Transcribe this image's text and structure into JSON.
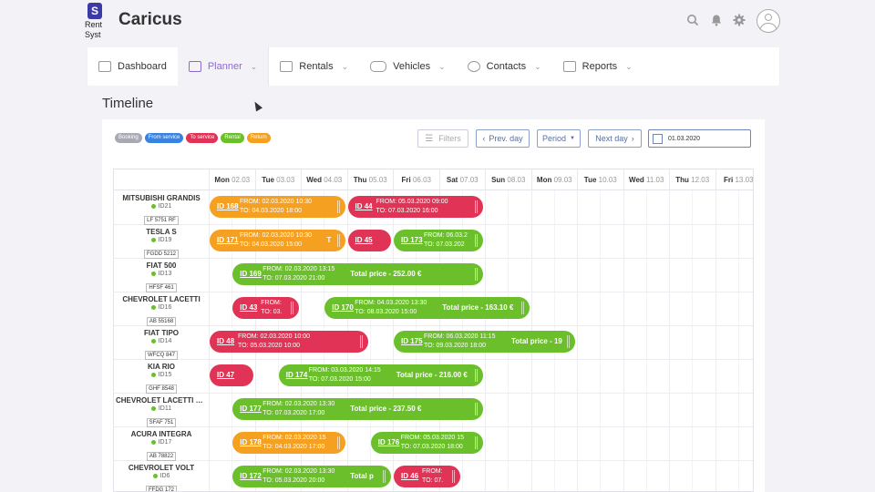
{
  "header": {
    "logo_line1": "Rent",
    "logo_line2": "Syst",
    "logo_mark": "S",
    "brand": "Caricus",
    "icons": [
      "search-icon",
      "bell-icon",
      "gear-icon",
      "user-avatar-icon"
    ]
  },
  "nav": {
    "items": [
      {
        "label": "Dashboard",
        "icon": "dashboard-icon",
        "dropdown": false,
        "active": false
      },
      {
        "label": "Planner",
        "icon": "planner-icon",
        "dropdown": true,
        "active": true
      },
      {
        "label": "Rentals",
        "icon": "rentals-icon",
        "dropdown": true,
        "active": false
      },
      {
        "label": "Vehicles",
        "icon": "car-icon",
        "dropdown": true,
        "active": false
      },
      {
        "label": "Contacts",
        "icon": "contacts-icon",
        "dropdown": true,
        "active": false
      },
      {
        "label": "Reports",
        "icon": "reports-icon",
        "dropdown": true,
        "active": false
      }
    ]
  },
  "page": {
    "title": "Timeline"
  },
  "legend": [
    {
      "label": "Booking",
      "color": "#a9a9b5"
    },
    {
      "label": "From service",
      "color": "#3a82e0"
    },
    {
      "label": "To service",
      "color": "#e03355"
    },
    {
      "label": "Rental",
      "color": "#6abf2a"
    },
    {
      "label": "Return",
      "color": "#f5a020"
    }
  ],
  "toolbar": {
    "filters": "Filters",
    "prev_day": "Prev. day",
    "period": "Period",
    "next_day": "Next day",
    "date_value": "01.03.2020"
  },
  "days": [
    {
      "dow": "Mon",
      "date": "02.03",
      "bold": true
    },
    {
      "dow": "Tue",
      "date": "03.03",
      "bold": true
    },
    {
      "dow": "Wed",
      "date": "04.03",
      "bold": true
    },
    {
      "dow": "Thu",
      "date": "05.03",
      "bold": true
    },
    {
      "dow": "Fri",
      "date": "06.03",
      "bold": true
    },
    {
      "dow": "Sat",
      "date": "07.03",
      "bold": true
    },
    {
      "dow": "Sun",
      "date": "08.03",
      "bold": true
    },
    {
      "dow": "Mon",
      "date": "09.03",
      "bold": true
    },
    {
      "dow": "Tue",
      "date": "10.03",
      "bold": true
    },
    {
      "dow": "Wed",
      "date": "11.03",
      "bold": true
    },
    {
      "dow": "Thu",
      "date": "12.03",
      "bold": true
    },
    {
      "dow": "Fri",
      "date": "13.03",
      "bold": true
    }
  ],
  "vehicles": [
    {
      "name": "MITSUBISHI GRANDIS",
      "id": "ID21",
      "plate": "LF 5751 RF"
    },
    {
      "name": "TESLA S",
      "id": "ID19",
      "plate": "FGDD 5212"
    },
    {
      "name": "FIAT 500",
      "id": "ID13",
      "plate": "HFSF 461"
    },
    {
      "name": "CHEVROLET LACETTI",
      "id": "ID16",
      "plate": "AB 55168"
    },
    {
      "name": "FIAT TIPO",
      "id": "ID14",
      "plate": "WFCQ 847"
    },
    {
      "name": "KIA RIO",
      "id": "ID15",
      "plate": "GHF 8548"
    },
    {
      "name": "CHEVROLET LACETTI W...",
      "id": "ID11",
      "plate": "SFAF 751"
    },
    {
      "name": "ACURA INTEGRA",
      "id": "ID17",
      "plate": "AB 78822"
    },
    {
      "name": "CHEVROLET VOLT",
      "id": "ID6",
      "plate": "FFDG 172"
    }
  ],
  "bookings": [
    {
      "row": 0,
      "start_day": 0,
      "span_days": 3,
      "color": "#f5a020",
      "id": "ID 168",
      "from": "FROM: 02.03.2020 10:30",
      "to": "TO: 04.03.2020 18:00",
      "total": ""
    },
    {
      "row": 0,
      "start_day": 3,
      "span_days": 3,
      "color": "#e03355",
      "id": "ID 44",
      "from": "FROM: 05.03.2020 09:00",
      "to": "TO: 07.03.2020 16:00",
      "total": ""
    },
    {
      "row": 1,
      "start_day": 0,
      "span_days": 3,
      "color": "#f5a020",
      "id": "ID 171",
      "from": "FROM: 02.03.2020 10:30",
      "to": "TO: 04.03.2020 15:00",
      "total": "T"
    },
    {
      "row": 1,
      "start_day": 3,
      "span_days": 1,
      "color": "#e03355",
      "id": "ID 45",
      "from": "",
      "to": "",
      "total": ""
    },
    {
      "row": 1,
      "start_day": 4,
      "span_days": 2,
      "color": "#6abf2a",
      "id": "ID 173",
      "from": "FROM: 06.03.2",
      "to": "TO: 07.03.202",
      "total": ""
    },
    {
      "row": 2,
      "start_day": 0.5,
      "span_days": 5.5,
      "color": "#6abf2a",
      "id": "ID 169",
      "from": "FROM: 02.03.2020 13:15",
      "to": "TO: 07.03.2020 21:00",
      "total": "Total price - 252.00 €"
    },
    {
      "row": 3,
      "start_day": 0.5,
      "span_days": 1.5,
      "color": "#e03355",
      "id": "ID 43",
      "from": "FROM:",
      "to": "TO: 03.",
      "total": ""
    },
    {
      "row": 3,
      "start_day": 2.5,
      "span_days": 4.5,
      "color": "#6abf2a",
      "id": "ID 170",
      "from": "FROM: 04.03.2020 13:30",
      "to": "TO: 08.03.2020 15:00",
      "total": "Total price - 163.10 €"
    },
    {
      "row": 4,
      "start_day": 0,
      "span_days": 3.5,
      "color": "#e03355",
      "id": "ID 48",
      "from": "FROM: 02.03.2020 10:00",
      "to": "TO: 05.03.2020 10:00",
      "total": ""
    },
    {
      "row": 4,
      "start_day": 4,
      "span_days": 4,
      "color": "#6abf2a",
      "id": "ID 175",
      "from": "FROM: 06.03.2020 11:15",
      "to": "TO: 09.03.2020 18:00",
      "total": "Total price - 19"
    },
    {
      "row": 5,
      "start_day": 0,
      "span_days": 1,
      "color": "#e03355",
      "id": "ID 47",
      "from": "",
      "to": "",
      "total": ""
    },
    {
      "row": 5,
      "start_day": 1.5,
      "span_days": 4.5,
      "color": "#6abf2a",
      "id": "ID 174",
      "from": "FROM: 03.03.2020 14:15",
      "to": "TO: 07.03.2020 15:00",
      "total": "Total price - 216.00 €"
    },
    {
      "row": 6,
      "start_day": 0.5,
      "span_days": 5.5,
      "color": "#6abf2a",
      "id": "ID 177",
      "from": "FROM: 02.03.2020 13:30",
      "to": "TO: 07.03.2020 17:00",
      "total": "Total price - 237.50 €"
    },
    {
      "row": 7,
      "start_day": 0.5,
      "span_days": 2.5,
      "color": "#f5a020",
      "id": "ID 178",
      "from": "FROM: 02.03.2020 15",
      "to": "TO: 04.03.2020 17:00",
      "total": ""
    },
    {
      "row": 7,
      "start_day": 3.5,
      "span_days": 2.5,
      "color": "#6abf2a",
      "id": "ID 176",
      "from": "FROM: 05.03.2020 15",
      "to": "TO: 07.03.2020 18:00",
      "total": ""
    },
    {
      "row": 8,
      "start_day": 0.5,
      "span_days": 3.5,
      "color": "#6abf2a",
      "id": "ID 172",
      "from": "FROM: 02.03.2020 13:30",
      "to": "TO: 05.03.2020 20:00",
      "total": "Total p"
    },
    {
      "row": 8,
      "start_day": 4,
      "span_days": 1.5,
      "color": "#e03355",
      "id": "ID 46",
      "from": "FROM:",
      "to": "TO: 07.",
      "total": ""
    }
  ]
}
